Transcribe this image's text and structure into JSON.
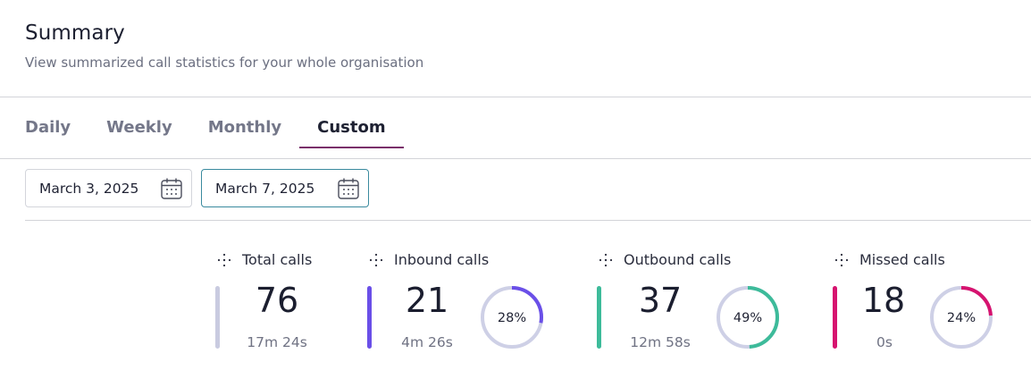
{
  "header": {
    "title": "Summary",
    "subtitle": "View summarized call statistics for your whole organisation"
  },
  "tabs": [
    {
      "label": "Daily",
      "active": false
    },
    {
      "label": "Weekly",
      "active": false
    },
    {
      "label": "Monthly",
      "active": false
    },
    {
      "label": "Custom",
      "active": true
    }
  ],
  "date_range": {
    "start": "March 3, 2025",
    "end": "March 7, 2025",
    "icon": "calendar-icon"
  },
  "stats": {
    "total": {
      "label": "Total calls",
      "count": "76",
      "duration": "17m 24s",
      "color": "#c9cbe0"
    },
    "inbound": {
      "label": "Inbound calls",
      "count": "21",
      "duration": "4m 26s",
      "percent_label": "28%",
      "percent": 28,
      "color": "#6a4fe8"
    },
    "outbound": {
      "label": "Outbound calls",
      "count": "37",
      "duration": "12m 58s",
      "percent_label": "49%",
      "percent": 49,
      "color": "#3dbb9a"
    },
    "missed": {
      "label": "Missed calls",
      "count": "18",
      "duration": "0s",
      "percent_label": "24%",
      "percent": 24,
      "color": "#d6136f"
    }
  },
  "colors": {
    "donut_track": "#ced0e6"
  }
}
